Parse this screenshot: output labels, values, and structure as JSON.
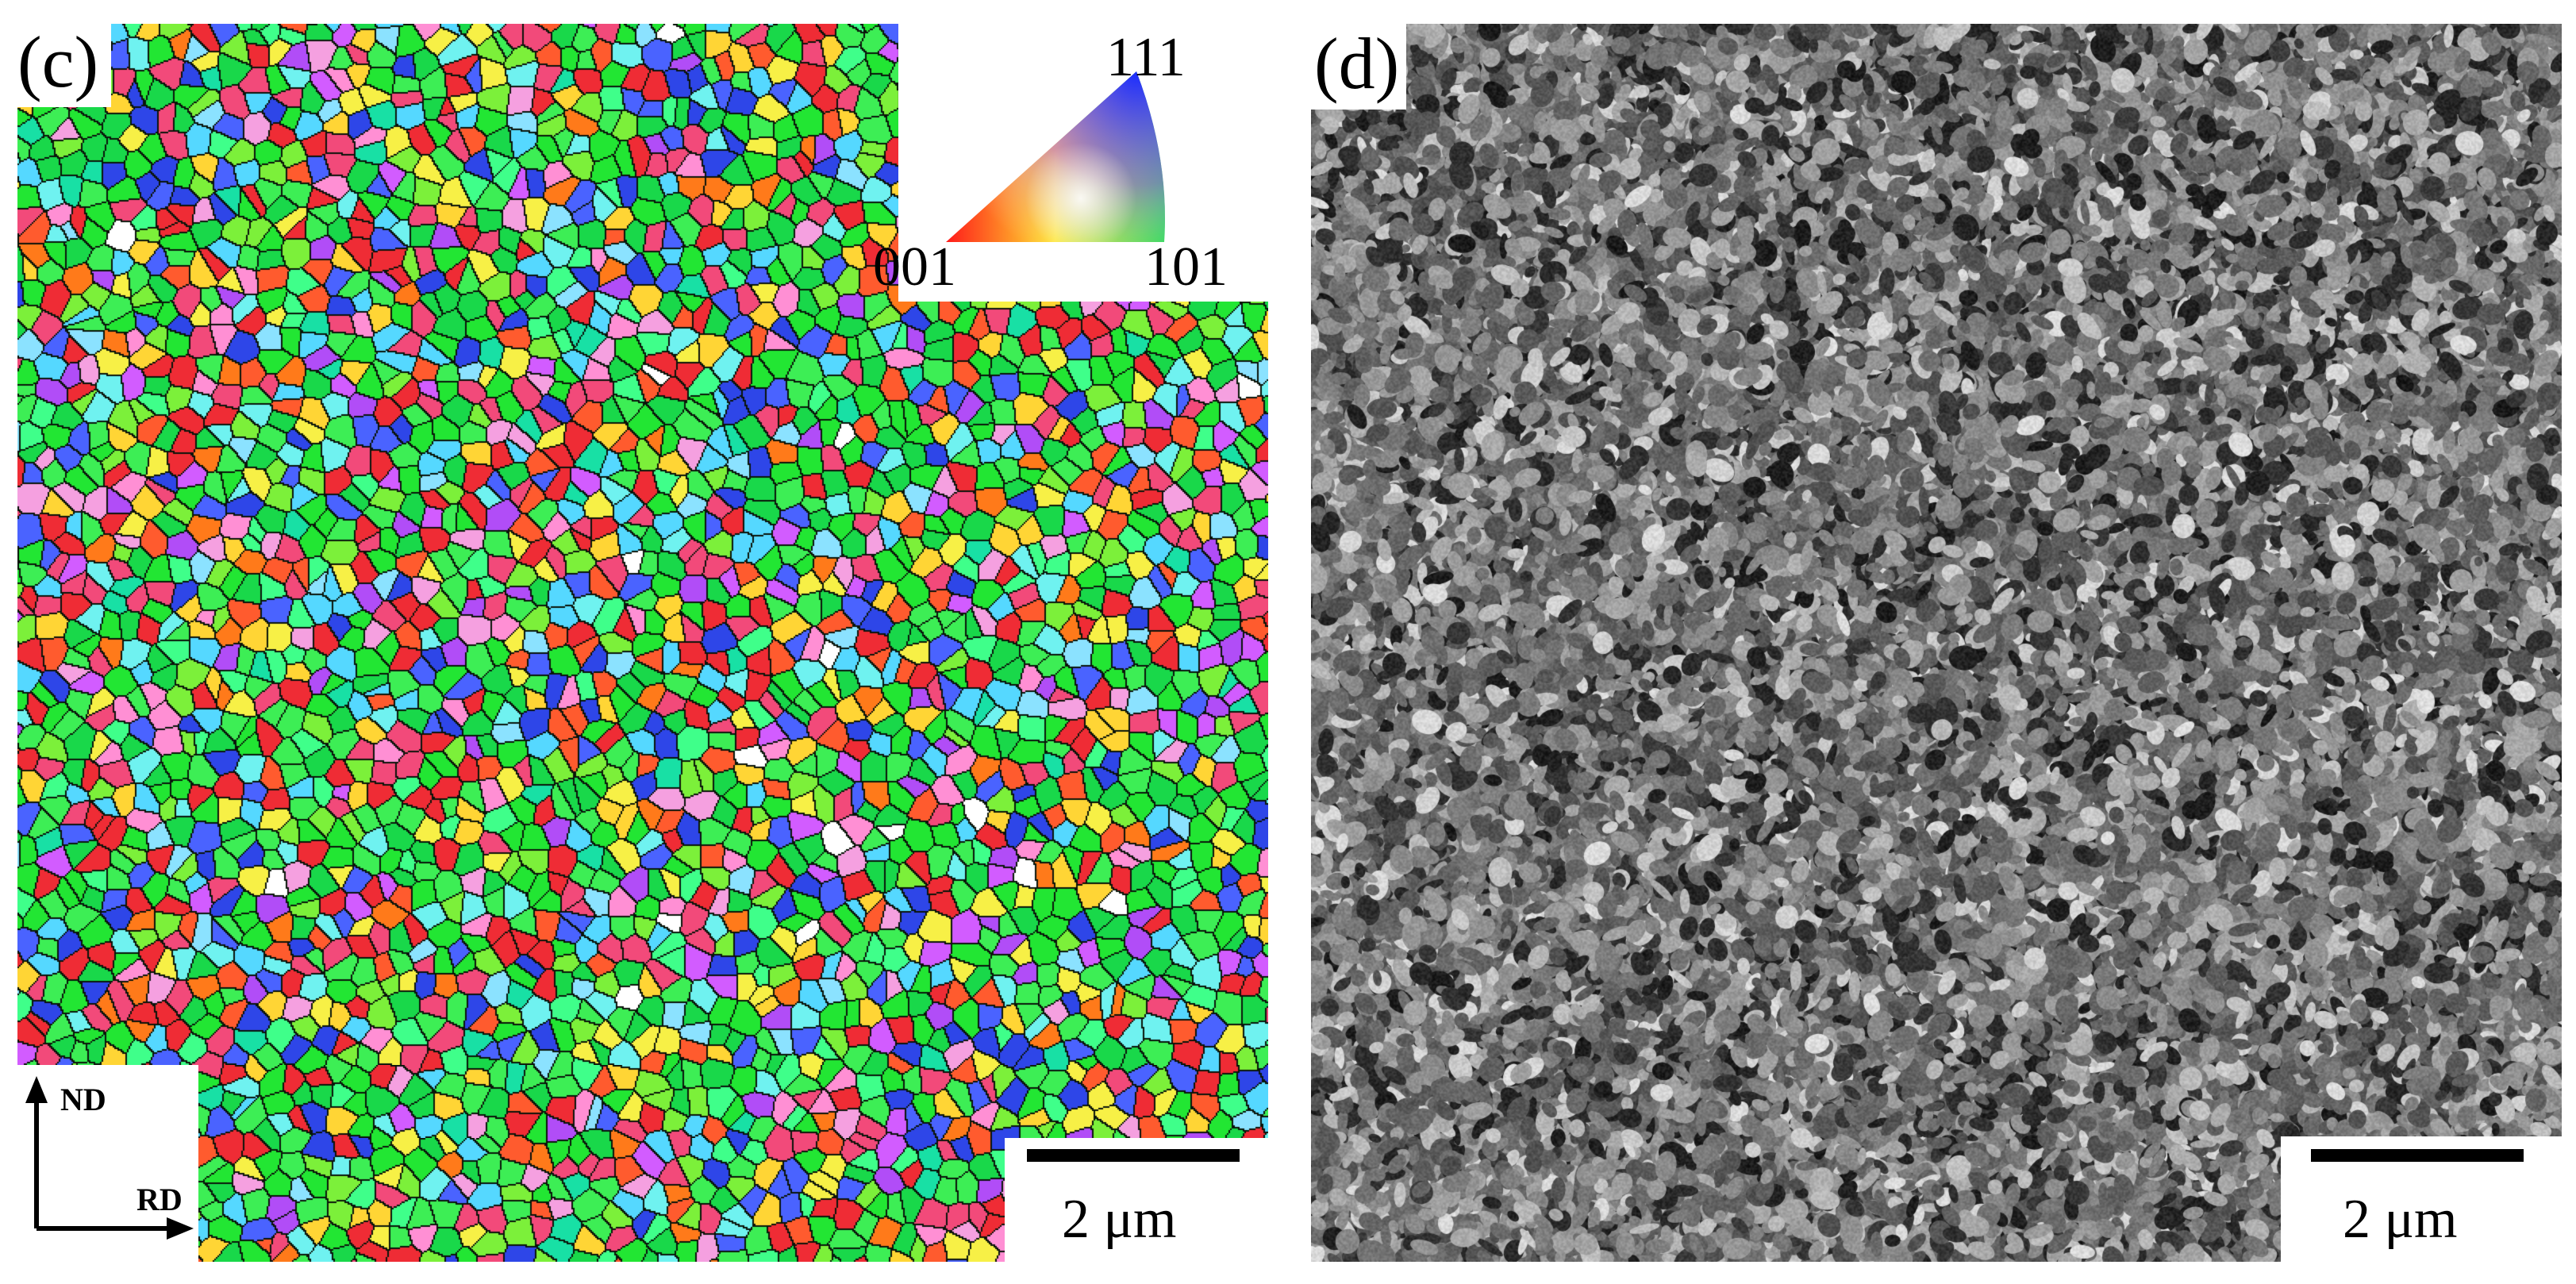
{
  "panel_c": {
    "letter": "(c)",
    "ipf_legend": {
      "top": "111",
      "left": "001",
      "right": "101"
    },
    "scale_bar": "2 μm",
    "axes": {
      "vertical": "ND",
      "horizontal": "RD"
    },
    "palette": [
      "#22e633",
      "#3dee55",
      "#7cf03a",
      "#19d84a",
      "#ef2c35",
      "#f24a7a",
      "#ff5b2e",
      "#f7f046",
      "#ffd535",
      "#2e46e8",
      "#4a63ff",
      "#55d8ff",
      "#6ff2f0",
      "#b14df7",
      "#d25cff",
      "#ff8fd4",
      "#f5a0e0",
      "#ffffff",
      "#18e0a5",
      "#ff7a1a",
      "#8be2ff",
      "#3fff8a"
    ]
  },
  "panel_d": {
    "letter": "(d)",
    "scale_bar": "2 μm"
  }
}
